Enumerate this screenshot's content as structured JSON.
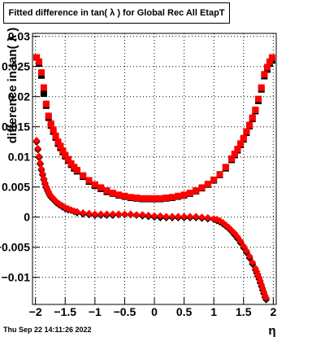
{
  "title": "Fitted difference in tan( λ ) for Global Rec All EtapT",
  "timestamp": "Thu Sep 22 14:11:26 2022",
  "chart_data": {
    "type": "scatter",
    "xlabel": "η",
    "ylabel": "difference in tan( λ )",
    "xlim": [
      -2.05,
      2.05
    ],
    "ylim": [
      -0.0145,
      0.0305
    ],
    "grid": true,
    "x_ticks": [
      "−2",
      "−1.5",
      "−1",
      "−0.5",
      "0",
      "0.5",
      "1",
      "1.5",
      "2"
    ],
    "x_tick_values": [
      -2,
      -1.5,
      -1,
      -0.5,
      0,
      0.5,
      1,
      1.5,
      2
    ],
    "y_ticks": [
      "−0.01",
      "−0.005",
      "0",
      "0.005",
      "0.01",
      "0.015",
      "0.02",
      "0.025",
      "0.03"
    ],
    "y_tick_values": [
      -0.01,
      -0.005,
      0,
      0.005,
      0.01,
      0.015,
      0.02,
      0.025,
      0.03
    ],
    "series": [
      {
        "color": "#000000",
        "marker": "square",
        "x": [
          -1.98,
          -1.94,
          -1.9,
          -1.86,
          -1.82,
          -1.78,
          -1.74,
          -1.7,
          -1.66,
          -1.62,
          -1.58,
          -1.54,
          -1.5,
          -1.45,
          -1.4,
          -1.35,
          -1.3,
          -1.2,
          -1.1,
          -1.0,
          -0.9,
          -0.8,
          -0.7,
          -0.6,
          -0.5,
          -0.4,
          -0.3,
          -0.2,
          -0.1,
          0.0,
          0.1,
          0.2,
          0.3,
          0.4,
          0.5,
          0.6,
          0.7,
          0.8,
          0.9,
          1.0,
          1.1,
          1.2,
          1.3,
          1.35,
          1.4,
          1.45,
          1.5,
          1.55,
          1.6,
          1.65,
          1.7,
          1.75,
          1.8,
          1.85,
          1.9,
          1.94,
          1.98
        ],
        "y": [
          0.0265,
          0.0255,
          0.0235,
          0.0205,
          0.0185,
          0.0165,
          0.0152,
          0.0142,
          0.0132,
          0.0122,
          0.0115,
          0.0108,
          0.0101,
          0.0094,
          0.0087,
          0.0081,
          0.0076,
          0.0067,
          0.0059,
          0.0052,
          0.0047,
          0.0042,
          0.0039,
          0.0036,
          0.0034,
          0.0032,
          0.0031,
          0.003,
          0.003,
          0.003,
          0.003,
          0.0031,
          0.0032,
          0.0034,
          0.0036,
          0.0039,
          0.0043,
          0.0048,
          0.0054,
          0.0061,
          0.007,
          0.0081,
          0.0095,
          0.0103,
          0.0111,
          0.012,
          0.0129,
          0.014,
          0.0151,
          0.0163,
          0.0176,
          0.0193,
          0.0212,
          0.0234,
          0.0245,
          0.0255,
          0.026
        ]
      },
      {
        "color": "#ff0000",
        "marker": "square",
        "x": [
          -1.98,
          -1.94,
          -1.9,
          -1.86,
          -1.82,
          -1.78,
          -1.74,
          -1.7,
          -1.66,
          -1.62,
          -1.58,
          -1.54,
          -1.5,
          -1.45,
          -1.4,
          -1.35,
          -1.3,
          -1.2,
          -1.1,
          -1.0,
          -0.9,
          -0.8,
          -0.7,
          -0.6,
          -0.5,
          -0.4,
          -0.3,
          -0.2,
          -0.1,
          0.0,
          0.1,
          0.2,
          0.3,
          0.4,
          0.5,
          0.6,
          0.7,
          0.8,
          0.9,
          1.0,
          1.1,
          1.2,
          1.3,
          1.35,
          1.4,
          1.45,
          1.5,
          1.55,
          1.6,
          1.65,
          1.7,
          1.75,
          1.8,
          1.85,
          1.9,
          1.94,
          1.98
        ],
        "y": [
          0.0265,
          0.0258,
          0.024,
          0.0215,
          0.0188,
          0.0168,
          0.0155,
          0.0145,
          0.0135,
          0.0125,
          0.0118,
          0.011,
          0.0103,
          0.0096,
          0.0089,
          0.0083,
          0.0078,
          0.0069,
          0.0061,
          0.0054,
          0.0049,
          0.0044,
          0.004,
          0.0037,
          0.0035,
          0.0033,
          0.0032,
          0.0031,
          0.0031,
          0.0031,
          0.0031,
          0.0032,
          0.0033,
          0.0035,
          0.0037,
          0.004,
          0.0044,
          0.0049,
          0.0055,
          0.0062,
          0.0071,
          0.0083,
          0.0097,
          0.0105,
          0.0113,
          0.0122,
          0.0131,
          0.0142,
          0.0153,
          0.0165,
          0.0178,
          0.0196,
          0.0215,
          0.0237,
          0.0249,
          0.0258,
          0.0265
        ]
      },
      {
        "color": "#000000",
        "marker": "diamond",
        "x": [
          -1.98,
          -1.96,
          -1.94,
          -1.92,
          -1.9,
          -1.88,
          -1.86,
          -1.84,
          -1.82,
          -1.8,
          -1.78,
          -1.76,
          -1.74,
          -1.72,
          -1.7,
          -1.65,
          -1.6,
          -1.55,
          -1.5,
          -1.45,
          -1.4,
          -1.35,
          -1.3,
          -1.2,
          -1.1,
          -1.0,
          -0.9,
          -0.8,
          -0.7,
          -0.6,
          -0.5,
          -0.4,
          -0.3,
          -0.2,
          -0.1,
          0.0,
          0.1,
          0.2,
          0.3,
          0.4,
          0.5,
          0.6,
          0.7,
          0.8,
          0.9,
          1.0,
          1.05,
          1.1,
          1.15,
          1.2,
          1.25,
          1.3,
          1.35,
          1.4,
          1.45,
          1.5,
          1.55,
          1.6,
          1.65,
          1.7,
          1.72,
          1.74,
          1.76,
          1.78,
          1.8,
          1.82,
          1.84,
          1.86,
          1.88
        ],
        "y": [
          0.0125,
          0.0112,
          0.0099,
          0.0088,
          0.0078,
          0.007,
          0.0062,
          0.0055,
          0.0049,
          0.0044,
          0.004,
          0.0036,
          0.0033,
          0.0031,
          0.0029,
          0.0024,
          0.002,
          0.0017,
          0.0014,
          0.0012,
          0.0011,
          0.0009,
          0.0007,
          0.0005,
          0.0004,
          0.0003,
          0.0003,
          0.0003,
          0.0003,
          0.0004,
          0.0004,
          0.0004,
          0.0003,
          0.0002,
          0.0001,
          0.0,
          -0.0001,
          -0.0001,
          -0.0001,
          -0.0001,
          -0.0001,
          -0.0001,
          -0.0001,
          -0.0002,
          -0.0003,
          -0.0004,
          -0.0006,
          -0.0008,
          -0.0011,
          -0.0015,
          -0.0019,
          -0.0024,
          -0.003,
          -0.0036,
          -0.0043,
          -0.0051,
          -0.0059,
          -0.0068,
          -0.0078,
          -0.0088,
          -0.0093,
          -0.0098,
          -0.0103,
          -0.0109,
          -0.0115,
          -0.0121,
          -0.0127,
          -0.0133,
          -0.0137
        ]
      },
      {
        "color": "#ff0000",
        "marker": "diamond",
        "x": [
          -1.98,
          -1.96,
          -1.94,
          -1.92,
          -1.9,
          -1.88,
          -1.86,
          -1.84,
          -1.82,
          -1.8,
          -1.78,
          -1.76,
          -1.74,
          -1.72,
          -1.7,
          -1.65,
          -1.6,
          -1.55,
          -1.5,
          -1.45,
          -1.4,
          -1.35,
          -1.3,
          -1.2,
          -1.1,
          -1.0,
          -0.9,
          -0.8,
          -0.7,
          -0.6,
          -0.5,
          -0.4,
          -0.3,
          -0.2,
          -0.1,
          0.0,
          0.1,
          0.2,
          0.3,
          0.4,
          0.5,
          0.6,
          0.7,
          0.8,
          0.9,
          1.0,
          1.05,
          1.1,
          1.15,
          1.2,
          1.25,
          1.3,
          1.35,
          1.4,
          1.45,
          1.5,
          1.55,
          1.6,
          1.65,
          1.7,
          1.72,
          1.74,
          1.76,
          1.78,
          1.8,
          1.82,
          1.84,
          1.86,
          1.88
        ],
        "y": [
          0.0127,
          0.0114,
          0.0101,
          0.009,
          0.008,
          0.0072,
          0.0064,
          0.0057,
          0.0051,
          0.0046,
          0.0042,
          0.0038,
          0.0035,
          0.0033,
          0.0031,
          0.0026,
          0.0022,
          0.0019,
          0.0016,
          0.0014,
          0.0012,
          0.001,
          0.0009,
          0.0007,
          0.0006,
          0.0005,
          0.0005,
          0.0005,
          0.0005,
          0.0005,
          0.0005,
          0.0005,
          0.0004,
          0.0004,
          0.0003,
          0.0002,
          0.0002,
          0.0001,
          0.0001,
          0.0001,
          0.0001,
          0.0001,
          0.0001,
          0.0,
          -0.0001,
          -0.0003,
          -0.0004,
          -0.0006,
          -0.0009,
          -0.0013,
          -0.0017,
          -0.0022,
          -0.0027,
          -0.0033,
          -0.004,
          -0.0048,
          -0.0056,
          -0.0065,
          -0.0075,
          -0.0085,
          -0.009,
          -0.0095,
          -0.01,
          -0.0106,
          -0.0112,
          -0.0118,
          -0.0124,
          -0.013,
          -0.0134
        ]
      }
    ]
  }
}
